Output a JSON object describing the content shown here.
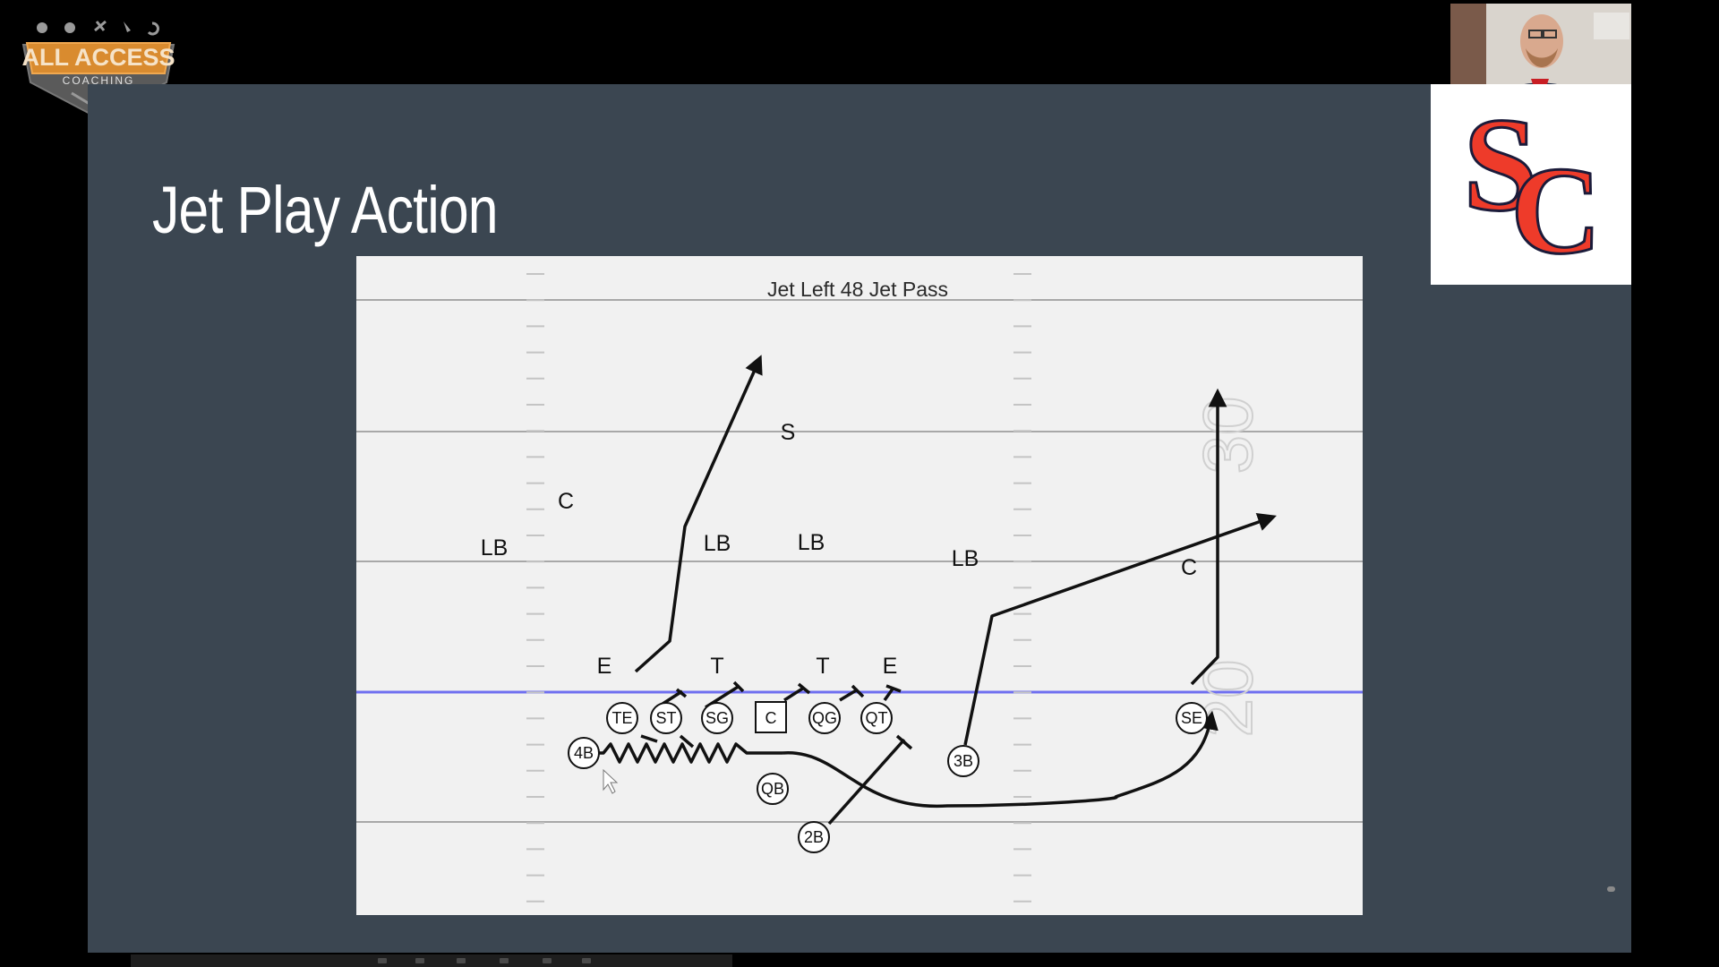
{
  "logo": {
    "brand": "ALL ACCESS",
    "sub": "COACHING"
  },
  "slide": {
    "title": "Jet Play Action"
  },
  "diagram": {
    "play_name": "Jet Left 48 Jet Pass",
    "field_numbers": [
      "30",
      "20"
    ],
    "offense": [
      {
        "label": "TE",
        "shape": "circle"
      },
      {
        "label": "ST",
        "shape": "circle"
      },
      {
        "label": "SG",
        "shape": "circle"
      },
      {
        "label": "C",
        "shape": "square"
      },
      {
        "label": "QG",
        "shape": "circle"
      },
      {
        "label": "QT",
        "shape": "circle"
      },
      {
        "label": "SE",
        "shape": "circle"
      },
      {
        "label": "4B",
        "shape": "circle"
      },
      {
        "label": "QB",
        "shape": "circle"
      },
      {
        "label": "3B",
        "shape": "circle"
      },
      {
        "label": "2B",
        "shape": "circle"
      }
    ],
    "defense": [
      "S",
      "C",
      "LB",
      "LB",
      "LB",
      "LB",
      "C",
      "E",
      "T",
      "T",
      "E"
    ]
  },
  "team_logo": {
    "letters": "SC",
    "color": "#ee3b2a"
  },
  "colors": {
    "slide_bg": "#3b4651",
    "line_of_scrimmage": "#6f6ff0"
  }
}
